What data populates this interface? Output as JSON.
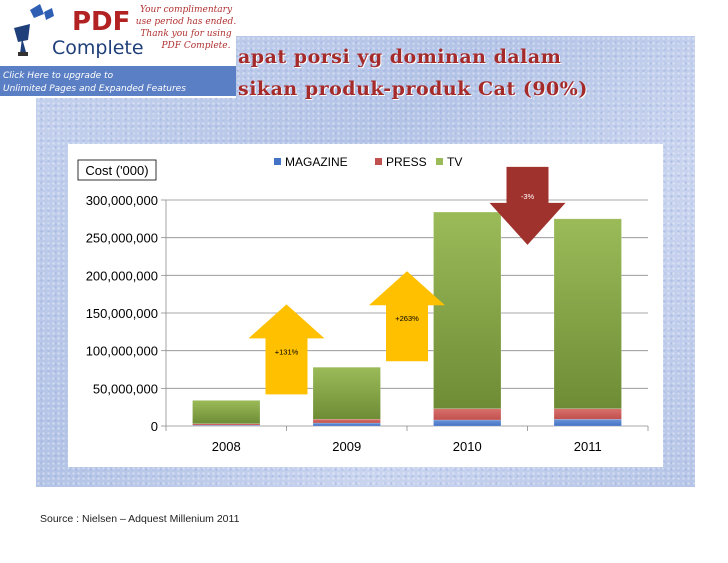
{
  "slide": {
    "title_line1": "apat porsi yg dominan dalam",
    "title_line2": "sikan produk-produk Cat (90%)",
    "source": "Source : Nielsen – Adquest Millenium 2011"
  },
  "banner": {
    "logo_pdf": "PDF",
    "logo_complete": "Complete",
    "notice": [
      "Your complimentary",
      "use period has ended.",
      "Thank you for using",
      "PDF Complete."
    ],
    "upgrade": [
      "Click Here to upgrade to",
      "Unlimited Pages and Expanded Features"
    ]
  },
  "colors": {
    "magazine": "#4472c4",
    "press": "#c0504d",
    "tv": "#9bbb59",
    "tv_dark": "#6e8c35",
    "arrow_up": "#ffc000",
    "arrow_down": "#a0322d",
    "axis_text": "#000000"
  },
  "chart_data": {
    "type": "bar",
    "stacked": true,
    "title": "",
    "ylabel": "Cost ('000)",
    "xlabel": "",
    "ylim": [
      0,
      300000000
    ],
    "ytick_step": 50000000,
    "ytick_labels": [
      "0",
      "50,000,000",
      "100,000,000",
      "150,000,000",
      "200,000,000",
      "250,000,000",
      "300,000,000"
    ],
    "categories": [
      "2008",
      "2009",
      "2010",
      "2011"
    ],
    "series": [
      {
        "name": "MAGAZINE",
        "values": [
          1000000,
          4000000,
          8000000,
          9000000
        ]
      },
      {
        "name": "PRESS",
        "values": [
          2000000,
          5000000,
          15000000,
          14000000
        ]
      },
      {
        "name": "TV",
        "values": [
          31000000,
          69000000,
          261000000,
          252000000
        ]
      }
    ],
    "legend": [
      "MAGAZINE",
      "PRESS",
      "TV"
    ],
    "legend_position": "top",
    "grid": true,
    "annotations": [
      {
        "label": "+131%",
        "direction": "up",
        "between": [
          "2008",
          "2009"
        ]
      },
      {
        "label": "+263%",
        "direction": "up",
        "between": [
          "2009",
          "2010"
        ]
      },
      {
        "label": "-3%",
        "direction": "down",
        "between": [
          "2010",
          "2011"
        ]
      }
    ]
  }
}
